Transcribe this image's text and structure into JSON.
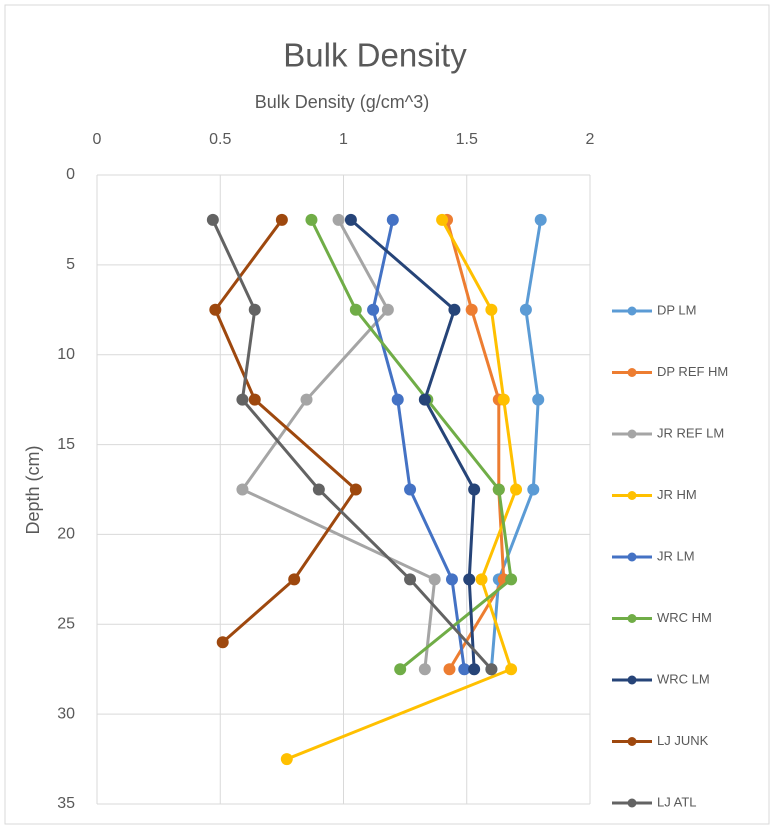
{
  "chart_data": {
    "type": "scatter",
    "title": "Bulk Density",
    "x_label": "Bulk Density (g/cm^3)",
    "y_label": "Depth (cm)",
    "xlim": [
      0,
      2
    ],
    "xticks": [
      0,
      0.5,
      1,
      1.5,
      2
    ],
    "ylim": [
      0,
      35
    ],
    "yticks": [
      0,
      5,
      10,
      15,
      20,
      25,
      30,
      35
    ],
    "y_inverted": true,
    "x_axis_top": true,
    "grid": true,
    "legend": "right",
    "series": [
      {
        "name": "DP LM",
        "color": "#5b9bd5",
        "x": [
          1.8,
          1.74,
          1.79,
          1.77,
          1.63,
          1.6
        ],
        "y": [
          2.5,
          7.5,
          12.5,
          17.5,
          22.5,
          27.5
        ]
      },
      {
        "name": "DP REF HM",
        "color": "#ed7d31",
        "x": [
          1.42,
          1.52,
          1.63,
          1.63,
          1.65,
          1.43
        ],
        "y": [
          2.5,
          7.5,
          12.5,
          17.5,
          22.5,
          27.5
        ]
      },
      {
        "name": "JR REF LM",
        "color": "#a5a5a5",
        "x": [
          0.98,
          1.18,
          0.85,
          0.59,
          1.37,
          1.33
        ],
        "y": [
          2.5,
          7.5,
          12.5,
          17.5,
          22.5,
          27.5
        ]
      },
      {
        "name": "JR HM",
        "color": "#ffc000",
        "x": [
          1.4,
          1.6,
          1.65,
          1.7,
          1.56,
          1.68,
          0.77
        ],
        "y": [
          2.5,
          7.5,
          12.5,
          17.5,
          22.5,
          27.5,
          32.5
        ]
      },
      {
        "name": "JR LM",
        "color": "#4472c4",
        "x": [
          1.2,
          1.12,
          1.22,
          1.27,
          1.44,
          1.49
        ],
        "y": [
          2.5,
          7.5,
          12.5,
          17.5,
          22.5,
          27.5
        ]
      },
      {
        "name": "WRC HM",
        "color": "#70ad47",
        "x": [
          0.87,
          1.05,
          1.34,
          1.63,
          1.68,
          1.23
        ],
        "y": [
          2.5,
          7.5,
          12.5,
          17.5,
          22.5,
          27.5
        ]
      },
      {
        "name": "WRC LM",
        "color": "#264478",
        "x": [
          1.03,
          1.45,
          1.33,
          1.53,
          1.51,
          1.53
        ],
        "y": [
          2.5,
          7.5,
          12.5,
          17.5,
          22.5,
          27.5
        ]
      },
      {
        "name": "LJ JUNK",
        "color": "#9e480e",
        "x": [
          0.75,
          0.48,
          0.64,
          1.05,
          0.8,
          0.51
        ],
        "y": [
          2.5,
          7.5,
          12.5,
          17.5,
          22.5,
          26
        ]
      },
      {
        "name": "LJ ATL",
        "color": "#636363",
        "x": [
          0.47,
          0.64,
          0.59,
          0.9,
          1.27,
          1.6
        ],
        "y": [
          2.5,
          7.5,
          12.5,
          17.5,
          22.5,
          27.5
        ]
      }
    ]
  }
}
